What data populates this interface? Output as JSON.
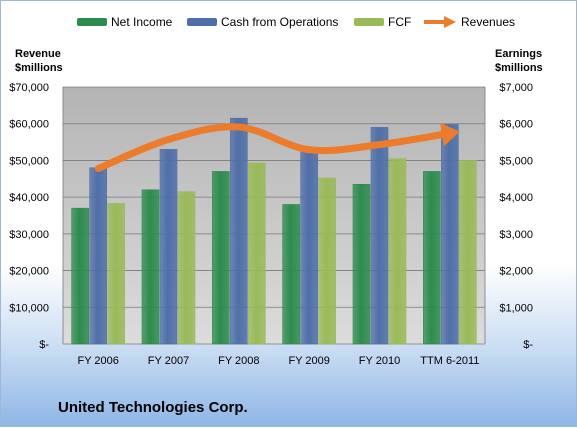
{
  "legend": {
    "net_income": "Net Income",
    "cfo": "Cash from Operations",
    "fcf": "FCF",
    "revenues": "Revenues"
  },
  "axes": {
    "left_title_line1": "Revenue",
    "left_title_line2": "$millions",
    "right_title_line1": "Earnings",
    "right_title_line2": "$millions"
  },
  "company": "United Technologies Corp.",
  "colors": {
    "net_income": "#2e8b4e",
    "cfo": "#4f6fa8",
    "fcf": "#9aba59",
    "revenues": "#ec7b2c",
    "plot_bg": "#c0c0c0"
  },
  "chart_data": {
    "type": "bar",
    "categories": [
      "FY 2006",
      "FY 2007",
      "FY 2008",
      "FY 2009",
      "FY 2010",
      "TTM 6-2011"
    ],
    "left_axis": {
      "range": [
        0,
        70000
      ],
      "ticks": [
        "$-",
        "$10,000",
        "$20,000",
        "$30,000",
        "$40,000",
        "$50,000",
        "$60,000",
        "$70,000"
      ]
    },
    "right_axis": {
      "range": [
        0,
        7000
      ],
      "ticks": [
        "$-",
        "$1,000",
        "$2,000",
        "$3,000",
        "$4,000",
        "$5,000",
        "$6,000",
        "$7,000"
      ]
    },
    "series": [
      {
        "name": "Net Income",
        "axis": "right",
        "values": [
          3700,
          4200,
          4700,
          3800,
          4350,
          4700
        ]
      },
      {
        "name": "Cash from Operations",
        "axis": "right",
        "values": [
          4800,
          5300,
          6150,
          5350,
          5900,
          5980
        ]
      },
      {
        "name": "FCF",
        "axis": "right",
        "values": [
          3830,
          4150,
          4930,
          4520,
          5050,
          5000
        ]
      },
      {
        "name": "Revenues",
        "axis": "left",
        "type": "line",
        "values": [
          47800,
          55700,
          59100,
          52900,
          54300,
          57400
        ]
      }
    ],
    "grid": true,
    "legend_position": "top"
  }
}
